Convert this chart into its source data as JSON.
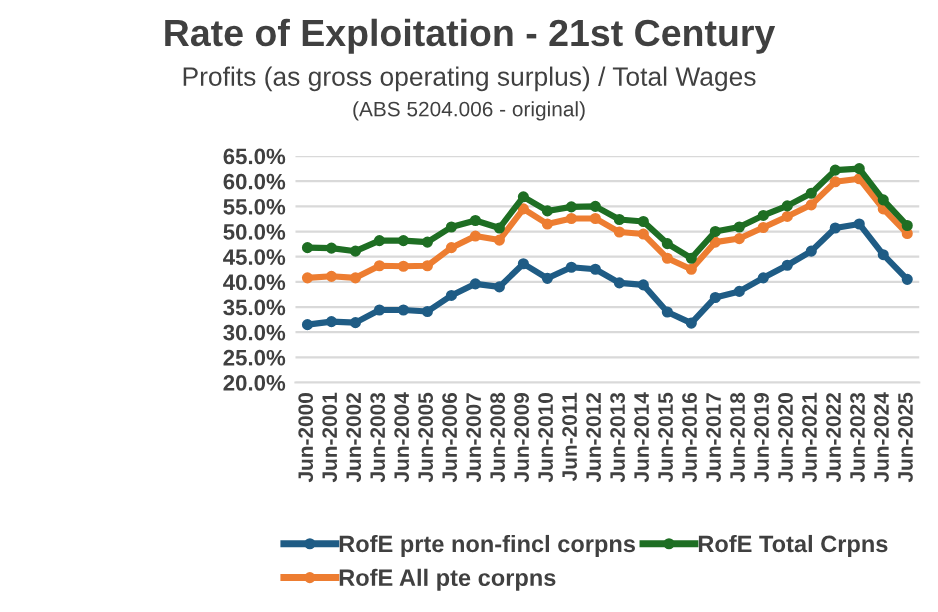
{
  "chart_data": {
    "type": "line",
    "title": "Rate of Exploitation - 21st Century",
    "subtitle": "Profits (as gross operating surplus) / Total Wages",
    "annotations": [
      "(ABS 5204.006 - original)"
    ],
    "categories": [
      "Jun-2000",
      "Jun-2001",
      "Jun-2002",
      "Jun-2003",
      "Jun-2004",
      "Jun-2005",
      "Jun-2006",
      "Jun-2007",
      "Jun-2008",
      "Jun-2009",
      "Jun-2010",
      "Jun-2011",
      "Jun-2012",
      "Jun-2013",
      "Jun-2014",
      "Jun-2015",
      "Jun-2016",
      "Jun-2017",
      "Jun-2018",
      "Jun-2019",
      "Jun-2020",
      "Jun-2021",
      "Jun-2022",
      "Jun-2023",
      "Jun-2024",
      "Jun-2025"
    ],
    "series": [
      {
        "name": "RofE prte non-fincl corpns",
        "color": "#1f5c85",
        "values": [
          31.5,
          32.1,
          31.9,
          34.4,
          34.4,
          34.1,
          37.3,
          39.6,
          39.0,
          43.6,
          40.7,
          42.9,
          42.5,
          39.8,
          39.4,
          34.0,
          31.8,
          36.9,
          38.1,
          40.8,
          43.3,
          46.1,
          50.7,
          51.5,
          45.4,
          40.5
        ]
      },
      {
        "name": "RofE All pte corpns",
        "color": "#ed7d31",
        "values": [
          40.8,
          41.1,
          40.8,
          43.2,
          43.1,
          43.2,
          46.8,
          49.1,
          48.3,
          54.5,
          51.5,
          52.6,
          52.6,
          49.9,
          49.5,
          44.7,
          42.5,
          47.9,
          48.6,
          50.8,
          53.0,
          55.3,
          59.9,
          60.5,
          54.5,
          49.6
        ]
      },
      {
        "name": "RofE Total Crpns",
        "color": "#1e6e23",
        "values": [
          46.8,
          46.7,
          46.1,
          48.2,
          48.2,
          47.9,
          50.9,
          52.2,
          50.7,
          56.9,
          54.1,
          54.9,
          55.0,
          52.4,
          52.0,
          47.6,
          44.7,
          50.0,
          50.9,
          53.2,
          55.1,
          57.6,
          62.2,
          62.5,
          56.3,
          51.2
        ]
      }
    ],
    "ylim": [
      20,
      65
    ],
    "yticks": [
      {
        "value": 20,
        "label": "20.0%"
      },
      {
        "value": 25,
        "label": "25.0%"
      },
      {
        "value": 30,
        "label": "30.0%"
      },
      {
        "value": 35,
        "label": "35.0%"
      },
      {
        "value": 40,
        "label": "40.0%"
      },
      {
        "value": 45,
        "label": "45.0%"
      },
      {
        "value": 50,
        "label": "50.0%"
      },
      {
        "value": 55,
        "label": "55.0%"
      },
      {
        "value": 60,
        "label": "60.0%"
      },
      {
        "value": 65,
        "label": "65.0%"
      }
    ],
    "grid": "y",
    "legend": "bottom",
    "marker": "circle",
    "line_style": "solid"
  }
}
